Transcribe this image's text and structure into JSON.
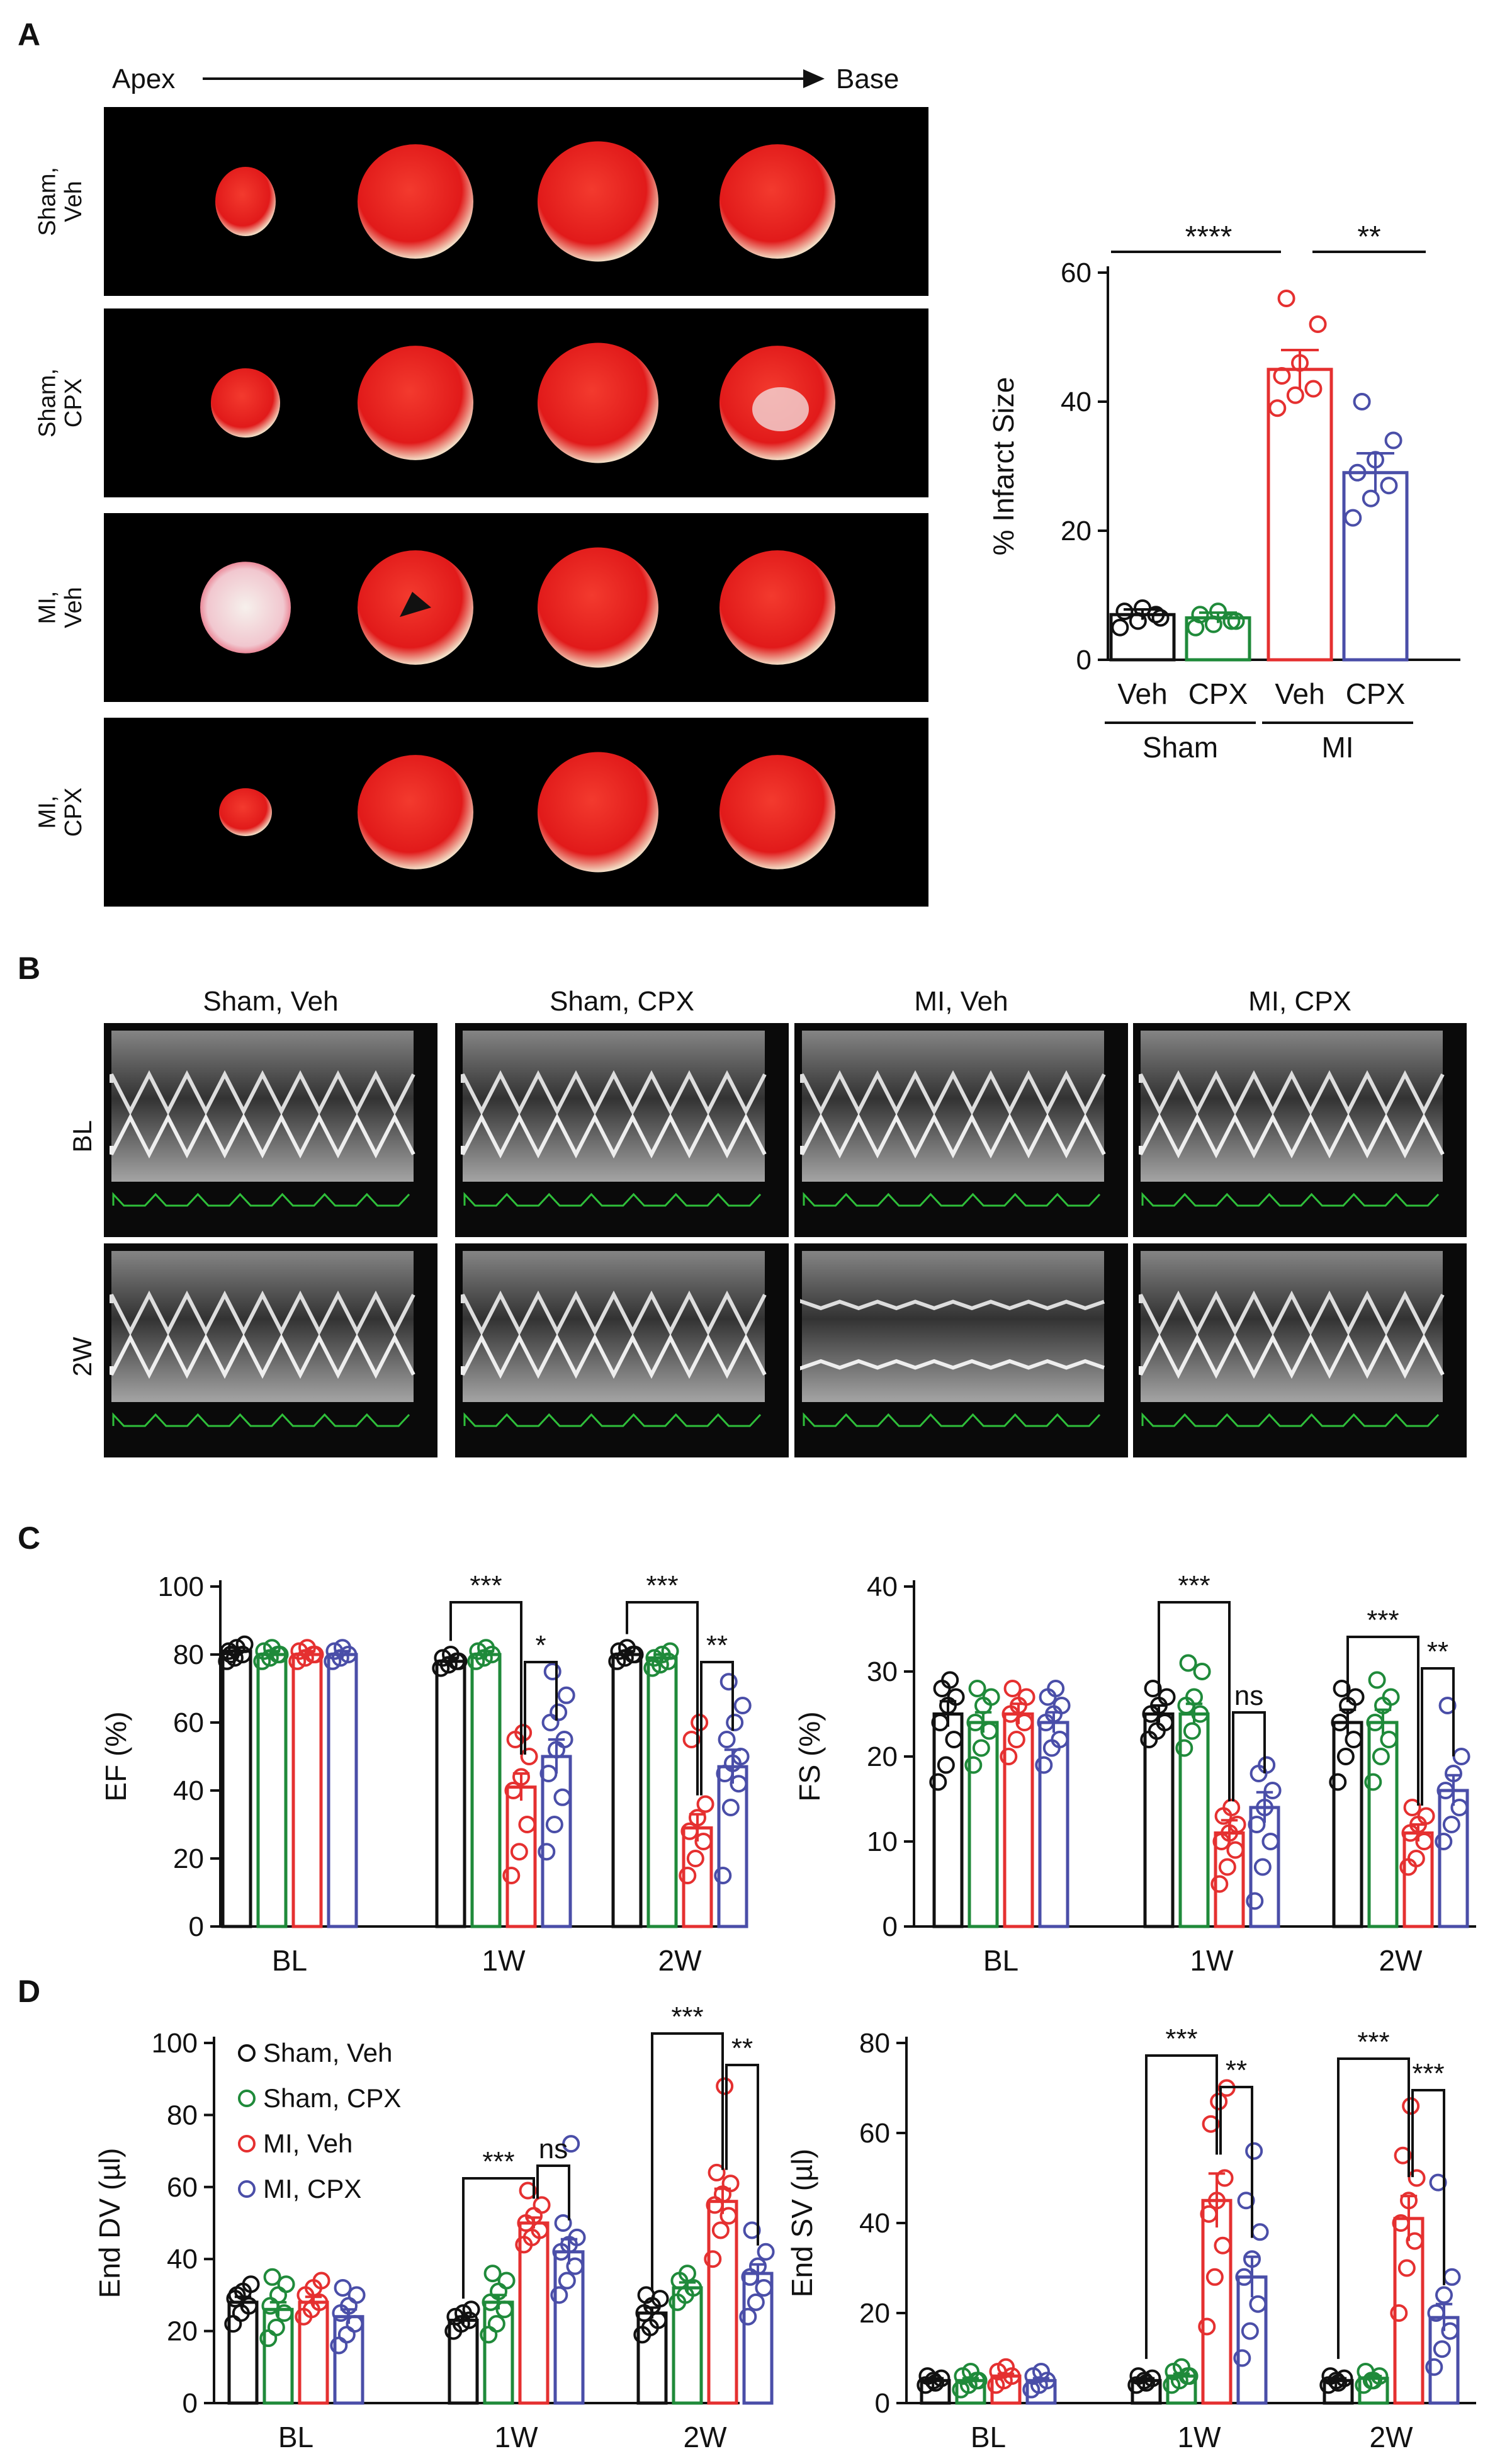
{
  "colors": {
    "sham_veh": "#111111",
    "sham_cpx": "#1f8a3a",
    "mi_veh": "#e53030",
    "mi_cpx": "#4a4ea8"
  },
  "panels": {
    "A": "A",
    "B": "B",
    "C": "C",
    "D": "D"
  },
  "panelA": {
    "axis": {
      "apex": "Apex",
      "base": "Base"
    },
    "rows": [
      {
        "line1": "Sham,",
        "line2": "Veh"
      },
      {
        "line1": "Sham,",
        "line2": "CPX"
      },
      {
        "line1": "MI,",
        "line2": "Veh"
      },
      {
        "line1": "MI,",
        "line2": "CPX"
      }
    ]
  },
  "panelB": {
    "cols": [
      "Sham, Veh",
      "Sham, CPX",
      "MI, Veh",
      "MI, CPX"
    ],
    "rows": [
      "BL",
      "2W"
    ]
  },
  "legend": [
    "Sham, Veh",
    "Sham, CPX",
    "MI, Veh",
    "MI, CPX"
  ],
  "chart_data": [
    {
      "id": "infarct",
      "type": "bar",
      "ylabel": "% Infarct Size",
      "ylim": [
        0,
        60
      ],
      "yticks": [
        "0",
        "20",
        "40",
        "60"
      ],
      "categories": [
        "Veh",
        "CPX",
        "Veh",
        "CPX"
      ],
      "group_labels": [
        "Sham",
        "MI"
      ],
      "values": [
        7,
        6.5,
        45,
        29
      ],
      "sems": [
        0.8,
        0.8,
        3,
        3
      ],
      "points": [
        [
          5,
          6,
          7,
          7.5,
          8,
          6.5
        ],
        [
          5,
          5.5,
          6,
          7,
          7.5,
          6
        ],
        [
          39,
          41,
          42,
          44,
          46,
          52,
          56
        ],
        [
          22,
          25,
          27,
          29,
          31,
          34,
          40
        ]
      ],
      "significance": [
        {
          "label": "****"
        },
        {
          "label": "**"
        }
      ]
    },
    {
      "id": "ef",
      "type": "bar",
      "ylabel": "EF (%)",
      "ylim": [
        0,
        100
      ],
      "yticks": [
        "0",
        "20",
        "40",
        "60",
        "80",
        "100"
      ],
      "categories": [
        "BL",
        "1W",
        "2W"
      ],
      "series": [
        {
          "values": [
            81,
            78,
            80
          ],
          "sems": [
            1,
            1,
            1
          ],
          "points": [
            [
              78,
              79,
              80,
              81,
              82,
              83,
              80
            ],
            [
              76,
              77,
              78,
              79,
              80,
              78
            ],
            [
              78,
              79,
              80,
              81,
              82,
              80
            ]
          ]
        },
        {
          "values": [
            80,
            80,
            79
          ],
          "sems": [
            1,
            1,
            1
          ],
          "points": [
            [
              78,
              79,
              80,
              81,
              82,
              80
            ],
            [
              78,
              79,
              80,
              81,
              82
            ],
            [
              76,
              77,
              78,
              79,
              80,
              81
            ]
          ]
        },
        {
          "values": [
            80,
            41,
            29
          ],
          "sems": [
            1,
            4,
            4
          ],
          "points": [
            [
              78,
              79,
              80,
              81,
              82,
              80
            ],
            [
              15,
              22,
              30,
              40,
              44,
              50,
              55,
              57
            ],
            [
              15,
              20,
              25,
              28,
              32,
              36,
              55,
              60
            ]
          ]
        },
        {
          "values": [
            80,
            50,
            47
          ],
          "sems": [
            1,
            5,
            5
          ],
          "points": [
            [
              78,
              79,
              80,
              81,
              82
            ],
            [
              22,
              30,
              38,
              45,
              52,
              55,
              60,
              63,
              68,
              75
            ],
            [
              15,
              35,
              42,
              45,
              48,
              50,
              55,
              60,
              65,
              72
            ]
          ]
        }
      ],
      "significance": [
        {
          "label": "***"
        },
        {
          "label": "*"
        },
        {
          "label": "***"
        },
        {
          "label": "**"
        }
      ]
    },
    {
      "id": "fs",
      "type": "bar",
      "ylabel": "FS (%)",
      "ylim": [
        0,
        40
      ],
      "yticks": [
        "0",
        "10",
        "20",
        "30",
        "40"
      ],
      "categories": [
        "BL",
        "1W",
        "2W"
      ],
      "series": [
        {
          "values": [
            25,
            25,
            24
          ],
          "sems": [
            1.5,
            1,
            1.5
          ],
          "points": [
            [
              17,
              19,
              22,
              24,
              26,
              27,
              28,
              29
            ],
            [
              22,
              23,
              24,
              25,
              26,
              27,
              28
            ],
            [
              17,
              20,
              22,
              24,
              26,
              27,
              28
            ]
          ]
        },
        {
          "values": [
            24,
            25,
            24
          ],
          "sems": [
            1.2,
            1.2,
            1.5
          ],
          "points": [
            [
              19,
              21,
              23,
              24,
              26,
              27,
              28
            ],
            [
              21,
              23,
              25,
              26,
              27,
              30,
              31
            ],
            [
              17,
              20,
              22,
              24,
              26,
              27,
              29
            ]
          ]
        },
        {
          "values": [
            25,
            11,
            11
          ],
          "sems": [
            1.2,
            1.5,
            1
          ],
          "points": [
            [
              20,
              22,
              24,
              25,
              26,
              27,
              28
            ],
            [
              5,
              7,
              9,
              10,
              11,
              12,
              13,
              14
            ],
            [
              7,
              8,
              10,
              11,
              12,
              13,
              14
            ]
          ]
        },
        {
          "values": [
            24,
            14,
            16
          ],
          "sems": [
            1.2,
            1.8,
            1.8
          ],
          "points": [
            [
              19,
              21,
              22,
              24,
              25,
              26,
              27,
              28
            ],
            [
              3,
              7,
              10,
              12,
              14,
              16,
              18,
              19
            ],
            [
              10,
              12,
              14,
              16,
              18,
              20,
              26
            ]
          ]
        }
      ],
      "significance": [
        {
          "label": "***"
        },
        {
          "label": "ns"
        },
        {
          "label": "***"
        },
        {
          "label": "**"
        }
      ]
    },
    {
      "id": "edv",
      "type": "bar",
      "ylabel": "End DV (µl)",
      "ylim": [
        0,
        100
      ],
      "yticks": [
        "0",
        "20",
        "40",
        "60",
        "80",
        "100"
      ],
      "categories": [
        "BL",
        "1W",
        "2W"
      ],
      "series": [
        {
          "values": [
            28,
            23,
            25
          ],
          "sems": [
            1.5,
            1,
            1.5
          ],
          "points": [
            [
              22,
              25,
              27,
              29,
              31,
              33,
              30
            ],
            [
              20,
              22,
              23,
              24,
              25,
              26
            ],
            [
              19,
              21,
              23,
              25,
              27,
              29,
              30
            ]
          ]
        },
        {
          "values": [
            26,
            28,
            32
          ],
          "sems": [
            2,
            2,
            1.5
          ],
          "points": [
            [
              18,
              21,
              25,
              27,
              30,
              33,
              35
            ],
            [
              19,
              22,
              26,
              28,
              31,
              34,
              36
            ],
            [
              28,
              30,
              32,
              34,
              36
            ]
          ]
        },
        {
          "values": [
            28,
            50,
            56
          ],
          "sems": [
            1.5,
            1.5,
            3.5
          ],
          "points": [
            [
              24,
              26,
              28,
              30,
              32,
              34
            ],
            [
              44,
              46,
              48,
              50,
              52,
              55,
              59
            ],
            [
              40,
              48,
              52,
              55,
              58,
              61,
              64,
              88
            ]
          ]
        },
        {
          "values": [
            24,
            42,
            36
          ],
          "sems": [
            2,
            3.5,
            2.5
          ],
          "points": [
            [
              16,
              19,
              22,
              25,
              27,
              30,
              32
            ],
            [
              30,
              34,
              38,
              42,
              44,
              46,
              50,
              72
            ],
            [
              24,
              28,
              32,
              35,
              38,
              42,
              48
            ]
          ]
        }
      ],
      "significance": [
        {
          "label": "***"
        },
        {
          "label": "ns"
        },
        {
          "label": "***"
        },
        {
          "label": "**"
        }
      ]
    },
    {
      "id": "esv",
      "type": "bar",
      "ylabel": "End SV (µl)",
      "ylim": [
        0,
        80
      ],
      "yticks": [
        "0",
        "20",
        "40",
        "60",
        "80"
      ],
      "categories": [
        "BL",
        "1W",
        "2W"
      ],
      "series": [
        {
          "values": [
            5,
            5,
            5
          ],
          "sems": [
            0.5,
            0.5,
            0.5
          ],
          "points": [
            [
              4,
              5,
              5.5,
              6,
              4.5
            ],
            [
              4,
              5,
              5.5,
              6,
              4.5
            ],
            [
              4,
              5,
              5.5,
              6,
              4.5
            ]
          ]
        },
        {
          "values": [
            5,
            6,
            5.5
          ],
          "sems": [
            0.5,
            0.5,
            0.5
          ],
          "points": [
            [
              3,
              4,
              5,
              6,
              7,
              5
            ],
            [
              4,
              5,
              6,
              7,
              8,
              6
            ],
            [
              4,
              5,
              6,
              7,
              5
            ]
          ]
        },
        {
          "values": [
            6,
            45,
            41
          ],
          "sems": [
            0.5,
            6,
            5
          ],
          "points": [
            [
              4,
              5,
              6,
              7,
              8
            ],
            [
              17,
              28,
              35,
              42,
              45,
              50,
              62,
              67,
              70
            ],
            [
              20,
              30,
              36,
              40,
              45,
              50,
              55,
              66
            ]
          ]
        },
        {
          "values": [
            5,
            28,
            19
          ],
          "sems": [
            0.5,
            4.5,
            3
          ],
          "points": [
            [
              3,
              4,
              5,
              6,
              7
            ],
            [
              10,
              16,
              22,
              28,
              32,
              38,
              45,
              56
            ],
            [
              8,
              12,
              16,
              20,
              24,
              28,
              49
            ]
          ]
        }
      ],
      "significance": [
        {
          "label": "***"
        },
        {
          "label": "**"
        },
        {
          "label": "***"
        },
        {
          "label": "***"
        }
      ]
    }
  ]
}
